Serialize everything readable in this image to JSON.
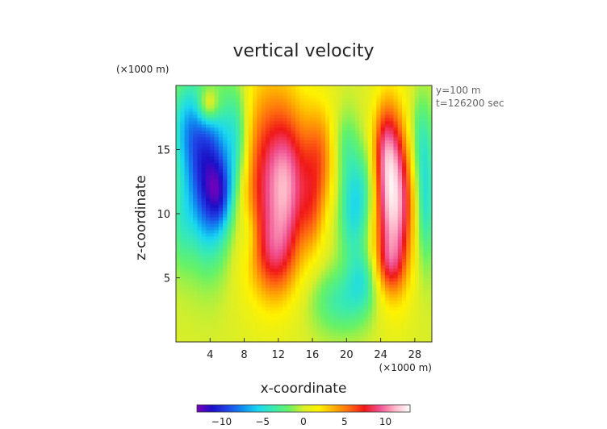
{
  "chart_data": {
    "type": "heatmap",
    "title": "vertical velocity",
    "xlabel": "x-coordinate",
    "ylabel": "z-coordinate",
    "x_unit": "(×1000 m)",
    "y_unit": "(×1000 m)",
    "annotations": [
      "y=100 m",
      "t=126200 sec"
    ],
    "xlim": [
      0,
      30
    ],
    "ylim": [
      0,
      20
    ],
    "x_ticks": [
      4,
      8,
      12,
      16,
      20,
      24,
      28
    ],
    "y_ticks": [
      5,
      10,
      15
    ],
    "color_range": [
      -13,
      13
    ],
    "colorbar_ticks": [
      -10,
      -5,
      0,
      5,
      10
    ],
    "colorbar_stops": [
      "#7a00b8",
      "#1a10c8",
      "#1f44e6",
      "#0f8ef0",
      "#1ad8f0",
      "#3aeab0",
      "#66f266",
      "#d9ee28",
      "#fff200",
      "#ffb000",
      "#ff6a10",
      "#f01818",
      "#f05090",
      "#ffb8c8",
      "#ffffff"
    ],
    "grid": "x: 0.5..29.5 step 1, z: 0.25..19.75 step 0.5",
    "features": [
      {
        "x": 3.8,
        "z": 13.0,
        "w": -11,
        "sx": 2.0,
        "sz": 4.2
      },
      {
        "x": 5.2,
        "z": 11.5,
        "w": -4,
        "sx": 1.0,
        "sz": 1.8
      },
      {
        "x": 1.2,
        "z": 17.0,
        "w": -4,
        "sx": 1.4,
        "sz": 2.5
      },
      {
        "x": 0.6,
        "z": 9.0,
        "w": -2,
        "sx": 0.8,
        "sz": 2.5
      },
      {
        "x": 7.2,
        "z": 16.0,
        "w": -4,
        "sx": 1.0,
        "sz": 3.0
      },
      {
        "x": 3.8,
        "z": 18.5,
        "w": 5,
        "sx": 0.9,
        "sz": 1.0
      },
      {
        "x": 11.0,
        "z": 12.5,
        "w": 8,
        "sx": 2.6,
        "sz": 5.5
      },
      {
        "x": 13.3,
        "z": 12.0,
        "w": 5,
        "sx": 1.5,
        "sz": 4.0
      },
      {
        "x": 11.5,
        "z": 6.5,
        "w": 3.5,
        "sx": 1.6,
        "sz": 2.2
      },
      {
        "x": 16.8,
        "z": 14.5,
        "w": 5,
        "sx": 1.4,
        "sz": 3.0
      },
      {
        "x": 16.0,
        "z": 10.0,
        "w": 3,
        "sx": 1.0,
        "sz": 2.5
      },
      {
        "x": 20.8,
        "z": 10.5,
        "w": -5,
        "sx": 1.2,
        "sz": 3.0
      },
      {
        "x": 22.5,
        "z": 12.0,
        "w": -2.5,
        "sx": 1.0,
        "sz": 2.5
      },
      {
        "x": 19.8,
        "z": 15.5,
        "w": -2,
        "sx": 1.0,
        "sz": 2.0
      },
      {
        "x": 19.5,
        "z": 3.2,
        "w": -3.5,
        "sx": 2.5,
        "sz": 1.8
      },
      {
        "x": 22.0,
        "z": 5.0,
        "w": -3,
        "sx": 1.2,
        "sz": 1.6
      },
      {
        "x": 25.5,
        "z": 11.0,
        "w": 12,
        "sx": 1.6,
        "sz": 4.5
      },
      {
        "x": 24.5,
        "z": 15.5,
        "w": 4,
        "sx": 1.0,
        "sz": 2.5
      },
      {
        "x": 25.0,
        "z": 6.0,
        "w": 3,
        "sx": 1.2,
        "sz": 1.5
      },
      {
        "x": 29.2,
        "z": 11.0,
        "w": -5,
        "sx": 0.8,
        "sz": 3.5
      },
      {
        "x": 28.6,
        "z": 16.0,
        "w": -3,
        "sx": 1.0,
        "sz": 2.5
      },
      {
        "x": 8.5,
        "z": 8.5,
        "w": -2,
        "sx": 0.8,
        "sz": 1.5
      }
    ]
  }
}
